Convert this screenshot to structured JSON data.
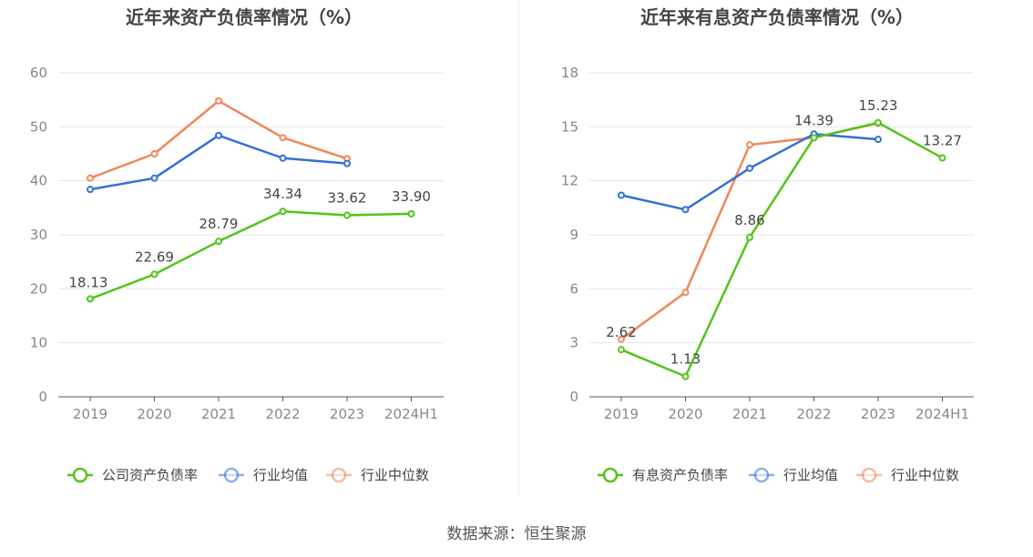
{
  "source": "数据来源：恒生聚源",
  "chart_data": [
    {
      "type": "line",
      "title": "近年来资产负债率情况（%）",
      "categories": [
        "2019",
        "2020",
        "2021",
        "2022",
        "2023",
        "2024H1"
      ],
      "ylim": [
        0,
        60
      ],
      "yticks": [
        0,
        10,
        20,
        30,
        40,
        50,
        60
      ],
      "grid": true,
      "legend_position": "bottom",
      "series": [
        {
          "name": "公司资产负债率",
          "color": "#52c41a",
          "values": [
            18.13,
            22.69,
            28.79,
            34.34,
            33.62,
            33.9
          ],
          "labels": [
            "18.13",
            "22.69",
            "28.79",
            "34.34",
            "33.62",
            "33.90"
          ]
        },
        {
          "name": "行业均值",
          "color": "#3370d6",
          "values": [
            38.4,
            40.5,
            48.4,
            44.2,
            43.2,
            null
          ]
        },
        {
          "name": "行业中位数",
          "color": "#f0875a",
          "values": [
            40.5,
            45.0,
            54.8,
            48.0,
            44.1,
            null
          ]
        }
      ]
    },
    {
      "type": "line",
      "title": "近年来有息资产负债率情况（%）",
      "categories": [
        "2019",
        "2020",
        "2021",
        "2022",
        "2023",
        "2024H1"
      ],
      "ylim": [
        0,
        18
      ],
      "yticks": [
        0,
        3,
        6,
        9,
        12,
        15,
        18
      ],
      "grid": true,
      "legend_position": "bottom",
      "series": [
        {
          "name": "有息资产负债率",
          "color": "#52c41a",
          "values": [
            2.62,
            1.13,
            8.86,
            14.39,
            15.23,
            13.27
          ],
          "labels": [
            "2.62",
            "1.13",
            "8.86",
            "14.39",
            "15.23",
            "13.27"
          ]
        },
        {
          "name": "行业均值",
          "color": "#3370d6",
          "values": [
            11.2,
            10.4,
            12.7,
            14.6,
            14.3,
            null
          ]
        },
        {
          "name": "行业中位数",
          "color": "#f0875a",
          "values": [
            3.2,
            5.8,
            14.0,
            14.4,
            15.2,
            null
          ]
        }
      ]
    }
  ]
}
